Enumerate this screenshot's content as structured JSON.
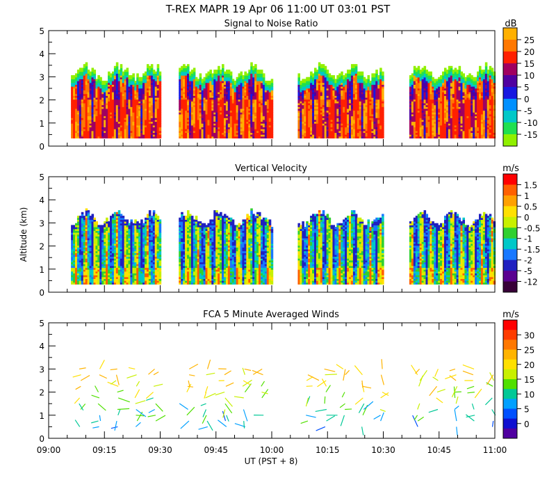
{
  "figure_title": "T-REX  MAPR 19 Apr 06  11:00 UT  03:01  PST",
  "chart_data": [
    {
      "type": "heatmap",
      "title": "Signal to Noise Ratio",
      "ylabel": "",
      "ylim": [
        0,
        5
      ],
      "yticks": [
        "0",
        "1",
        "2",
        "3",
        "4",
        "5"
      ],
      "colorbar_unit": "dB",
      "colorbar_labels": [
        "25",
        "20",
        "15",
        "10",
        "5",
        "0",
        "-5",
        "-10",
        "-15"
      ],
      "colorbar_colors": [
        "#ffb000",
        "#ff7800",
        "#ff2000",
        "#a00060",
        "#5000a0",
        "#1818e0",
        "#0090ff",
        "#00c8c8",
        "#20e050",
        "#90f000"
      ],
      "data_gaps_ut": [
        [
          "09:30",
          "09:35"
        ],
        [
          "10:00",
          "10:07"
        ],
        [
          "10:30",
          "10:37"
        ]
      ]
    },
    {
      "type": "heatmap",
      "title": "Vertical Velocity",
      "ylabel": "Altitude (km)",
      "ylim": [
        0,
        5
      ],
      "yticks": [
        "0",
        "1",
        "2",
        "3",
        "4",
        "5"
      ],
      "colorbar_unit": "m/s",
      "colorbar_labels": [
        "1.5",
        "1",
        "0.5",
        "0",
        "-0.5",
        "-1",
        "-1.5",
        "-2",
        "-5",
        "-12"
      ],
      "colorbar_colors": [
        "#ff0000",
        "#ff6000",
        "#ffa000",
        "#ffe000",
        "#c8f000",
        "#30d030",
        "#00c8c8",
        "#1878ff",
        "#2020c0",
        "#5a0090",
        "#380038"
      ]
    },
    {
      "type": "scatter",
      "title": "FCA 5 Minute Averaged Winds",
      "ylabel": "",
      "ylim": [
        0,
        5
      ],
      "yticks": [
        "0",
        "1",
        "2",
        "3",
        "4",
        "5"
      ],
      "colorbar_unit": "m/s",
      "colorbar_labels": [
        "30",
        "25",
        "20",
        "15",
        "10",
        "5",
        "0"
      ],
      "colorbar_colors": [
        "#ff0000",
        "#ff3c00",
        "#ff7800",
        "#ffb400",
        "#ffe000",
        "#c8f000",
        "#50e000",
        "#00c896",
        "#00a0ff",
        "#0050ff",
        "#1010d0",
        "#5000a0"
      ]
    }
  ],
  "x_axis": {
    "ticks": [
      "09:00",
      "09:15",
      "09:30",
      "09:45",
      "10:00",
      "10:15",
      "10:30",
      "10:45",
      "11:00"
    ],
    "xlabel": "UT  (PST + 8)"
  }
}
